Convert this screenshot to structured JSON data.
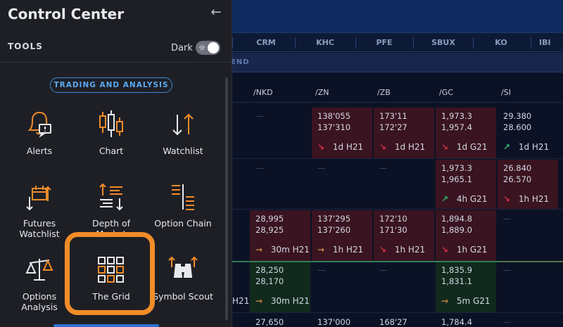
{
  "panel": {
    "title": "Control Center",
    "section_label": "TOOLS",
    "dark_label": "Dark",
    "category_pill": "TRADING AND ANALYSIS",
    "tools": [
      {
        "label": "Alerts",
        "icon": "bell-alert-icon"
      },
      {
        "label": "Chart",
        "icon": "candlestick-chart-icon"
      },
      {
        "label": "Watchlist",
        "icon": "watchlist-arrows-icon"
      },
      {
        "label": "Futures\nWatchlist",
        "icon": "futures-watchlist-icon"
      },
      {
        "label": "Depth of\nMarket",
        "icon": "depth-of-market-icon"
      },
      {
        "label": "Option Chain",
        "icon": "option-chain-icon"
      },
      {
        "label": "Options\nAnalysis",
        "icon": "scales-icon"
      },
      {
        "label": "The Grid",
        "icon": "grid-icon"
      },
      {
        "label": "Symbol Scout",
        "icon": "binoculars-icon"
      }
    ],
    "highlight_color": "#f28c28"
  },
  "grid": {
    "symbols": [
      "CRM",
      "KHC",
      "PFE",
      "SBUX",
      "KO",
      "IBI"
    ],
    "section_label": "END",
    "columns": [
      "/NKD",
      "/ZN",
      "/ZB",
      "/GC",
      "/SI"
    ],
    "rows": [
      [
        {
          "empty": true
        },
        {
          "v1": "138'055",
          "v2": "137'310",
          "dir": "down",
          "tf": "1d",
          "code": "H21",
          "tone": "red"
        },
        {
          "v1": "173'11",
          "v2": "172'27",
          "dir": "down",
          "tf": "1d",
          "code": "H21",
          "tone": "red"
        },
        {
          "v1": "1,973.3",
          "v2": "1,957.4",
          "dir": "down",
          "tf": "1d",
          "code": "G21",
          "tone": "red"
        },
        {
          "v1": "29.380",
          "v2": "28.600",
          "dir": "up",
          "tf": "1d",
          "code": "H21",
          "tone": "none"
        }
      ],
      [
        {
          "empty": true
        },
        {
          "empty": true
        },
        {
          "empty": true
        },
        {
          "v1": "1,973.3",
          "v2": "1,965.1",
          "dir": "up",
          "tf": "4h",
          "code": "G21",
          "tone": "red"
        },
        {
          "v1": "26.840",
          "v2": "26.570",
          "dir": "down",
          "tf": "1h",
          "code": "H21",
          "tone": "red"
        }
      ],
      [
        {
          "v1": "28,995",
          "v2": "28,925",
          "dir": "flat",
          "tf": "30m",
          "code": "H21",
          "tone": "red"
        },
        {
          "v1": "137'295",
          "v2": "137'260",
          "dir": "flat",
          "tf": "1h",
          "code": "H21",
          "tone": "red"
        },
        {
          "v1": "172'10",
          "v2": "171'30",
          "dir": "down",
          "tf": "1h",
          "code": "H21",
          "tone": "red"
        },
        {
          "v1": "1,894.8",
          "v2": "1,889.0",
          "dir": "down",
          "tf": "1h",
          "code": "G21",
          "tone": "red"
        },
        {
          "empty": true
        }
      ],
      [
        {
          "v1": "28,250",
          "v2": "28,170",
          "dir": "flat",
          "tf": "30m",
          "code": "H21",
          "tone": "green"
        },
        {
          "empty": true
        },
        {
          "empty": true
        },
        {
          "v1": "1,835.9",
          "v2": "1,831.1",
          "dir": "flat",
          "tf": "5m",
          "code": "G21",
          "tone": "green"
        },
        {
          "empty": true
        }
      ],
      [
        {
          "v1": "27,650",
          "v2": "",
          "dir": "",
          "tf": "",
          "code": "",
          "tone": "none"
        },
        {
          "v1": "137'000",
          "v2": "",
          "dir": "",
          "tf": "",
          "code": "",
          "tone": "none"
        },
        {
          "v1": "168'27",
          "v2": "",
          "dir": "",
          "tf": "",
          "code": "",
          "tone": "none"
        },
        {
          "v1": "1,784.4",
          "v2": "",
          "dir": "",
          "tf": "",
          "code": "",
          "tone": "none"
        },
        {
          "empty": true
        }
      ]
    ],
    "left_partial_label": "H21",
    "dash": "—",
    "arrows": {
      "down": "↘",
      "up": "↗",
      "flat": "→"
    }
  }
}
